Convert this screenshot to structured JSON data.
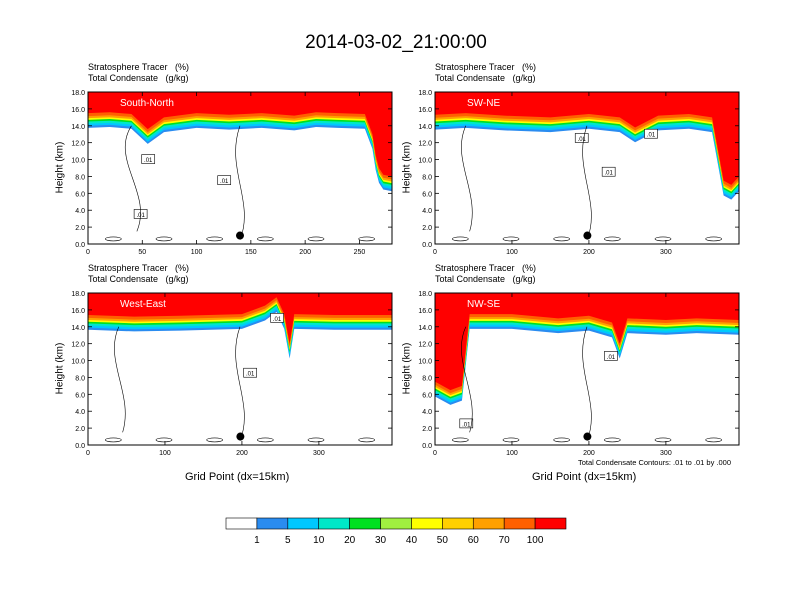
{
  "figure": {
    "title": "2014-03-02_21:00:00",
    "contour_note": "Total Condensate Contours: .01 to .01 by .000"
  },
  "colors": {
    "levels": [
      "#ffffff",
      "#2a8cf0",
      "#00c8ff",
      "#00e8c8",
      "#00e020",
      "#a0f040",
      "#ffff00",
      "#ffd000",
      "#ffa000",
      "#ff6000",
      "#ff0000"
    ],
    "contour": "#000000"
  },
  "colorbar": {
    "labels": [
      "1",
      "5",
      "10",
      "20",
      "30",
      "40",
      "50",
      "60",
      "70",
      "100"
    ]
  },
  "chart_data": [
    {
      "type": "heatmap",
      "name": "South-North",
      "title_line1": "Stratosphere Tracer   (%)",
      "title_line2": "Total Condensate   (g/kg)",
      "ylabel": "Height (km)",
      "xlabel": "",
      "xlim": [
        0,
        280
      ],
      "ylim": [
        0,
        18
      ],
      "xticks": [
        "0",
        "50",
        "100",
        "150",
        "200",
        "250"
      ],
      "xtick_vals": [
        0,
        50,
        100,
        150,
        200,
        250
      ],
      "yticks": [
        "0.0",
        "2.0",
        "4.0",
        "6.0",
        "8.0",
        "10.0",
        "12.0",
        "14.0",
        "16.0",
        "18.0"
      ],
      "tropopause": [
        [
          0,
          15.5
        ],
        [
          20,
          15.6
        ],
        [
          40,
          15.4
        ],
        [
          55,
          13.6
        ],
        [
          70,
          15.0
        ],
        [
          100,
          15.5
        ],
        [
          130,
          15.3
        ],
        [
          160,
          15.5
        ],
        [
          190,
          15.2
        ],
        [
          210,
          15.6
        ],
        [
          230,
          15.5
        ],
        [
          255,
          15.4
        ],
        [
          262,
          13.0
        ],
        [
          265,
          10.5
        ],
        [
          268,
          9.0
        ],
        [
          272,
          8.2
        ],
        [
          280,
          8.0
        ]
      ],
      "contour_labels": [
        {
          "x": 55,
          "y": 10.0,
          "text": ".01"
        },
        {
          "x": 125,
          "y": 7.5,
          "text": ".01"
        },
        {
          "x": 48,
          "y": 3.5,
          "text": ".01"
        }
      ],
      "marker": {
        "x": 140,
        "y": 1.0
      }
    },
    {
      "type": "heatmap",
      "name": "SW-NE",
      "title_line1": "Stratosphere Tracer   (%)",
      "title_line2": "Total Condensate   (g/kg)",
      "ylabel": "Height (km)",
      "xlabel": "",
      "xlim": [
        0,
        395
      ],
      "ylim": [
        0,
        18
      ],
      "xticks": [
        "0",
        "100",
        "200",
        "300"
      ],
      "xtick_vals": [
        0,
        100,
        200,
        300
      ],
      "yticks": [
        "0.0",
        "2.0",
        "4.0",
        "6.0",
        "8.0",
        "10.0",
        "12.0",
        "14.0",
        "16.0",
        "18.0"
      ],
      "tropopause": [
        [
          0,
          15.3
        ],
        [
          40,
          15.5
        ],
        [
          90,
          15.2
        ],
        [
          150,
          15.0
        ],
        [
          200,
          15.4
        ],
        [
          240,
          15.0
        ],
        [
          260,
          13.8
        ],
        [
          290,
          15.2
        ],
        [
          330,
          15.4
        ],
        [
          360,
          15.0
        ],
        [
          370,
          10.0
        ],
        [
          375,
          7.5
        ],
        [
          385,
          7.0
        ],
        [
          395,
          8.0
        ]
      ],
      "contour_labels": [
        {
          "x": 190,
          "y": 12.5,
          "text": ".01"
        },
        {
          "x": 225,
          "y": 8.5,
          "text": ".01"
        },
        {
          "x": 280,
          "y": 13.0,
          "text": ".01"
        }
      ],
      "marker": {
        "x": 198,
        "y": 1.0
      }
    },
    {
      "type": "heatmap",
      "name": "West-East",
      "title_line1": "Stratosphere Tracer   (%)",
      "title_line2": "Total Condensate   (g/kg)",
      "ylabel": "Height (km)",
      "xlabel": "Grid Point (dx=15km)",
      "xlim": [
        0,
        395
      ],
      "ylim": [
        0,
        18
      ],
      "xticks": [
        "0",
        "100",
        "200",
        "300"
      ],
      "xtick_vals": [
        0,
        100,
        200,
        300
      ],
      "yticks": [
        "0.0",
        "2.0",
        "4.0",
        "6.0",
        "8.0",
        "10.0",
        "12.0",
        "14.0",
        "16.0",
        "18.0"
      ],
      "tropopause": [
        [
          0,
          15.4
        ],
        [
          60,
          15.2
        ],
        [
          120,
          15.3
        ],
        [
          200,
          15.5
        ],
        [
          230,
          16.5
        ],
        [
          245,
          17.5
        ],
        [
          255,
          15.5
        ],
        [
          262,
          12.0
        ],
        [
          268,
          15.5
        ],
        [
          320,
          15.4
        ],
        [
          395,
          15.4
        ]
      ],
      "contour_labels": [
        {
          "x": 210,
          "y": 8.5,
          "text": ".01"
        },
        {
          "x": 245,
          "y": 15.0,
          "text": ".01"
        }
      ],
      "marker": {
        "x": 198,
        "y": 1.0
      }
    },
    {
      "type": "heatmap",
      "name": "NW-SE",
      "title_line1": "Stratosphere Tracer   (%)",
      "title_line2": "Total Condensate   (g/kg)",
      "ylabel": "Height (km)",
      "xlabel": "Grid Point (dx=15km)",
      "xlim": [
        0,
        395
      ],
      "ylim": [
        0,
        18
      ],
      "xticks": [
        "0",
        "100",
        "200",
        "300"
      ],
      "xtick_vals": [
        0,
        100,
        200,
        300
      ],
      "yticks": [
        "0.0",
        "2.0",
        "4.0",
        "6.0",
        "8.0",
        "10.0",
        "12.0",
        "14.0",
        "16.0",
        "18.0"
      ],
      "tropopause": [
        [
          0,
          7.5
        ],
        [
          20,
          6.5
        ],
        [
          35,
          7.0
        ],
        [
          45,
          15.5
        ],
        [
          100,
          15.5
        ],
        [
          160,
          15.0
        ],
        [
          200,
          15.3
        ],
        [
          230,
          14.5
        ],
        [
          240,
          12.0
        ],
        [
          250,
          15.0
        ],
        [
          300,
          14.8
        ],
        [
          340,
          15.0
        ],
        [
          395,
          14.8
        ]
      ],
      "contour_labels": [
        {
          "x": 40,
          "y": 2.5,
          "text": ".01"
        },
        {
          "x": 228,
          "y": 10.5,
          "text": ".01"
        }
      ],
      "marker": {
        "x": 198,
        "y": 1.0
      }
    }
  ]
}
